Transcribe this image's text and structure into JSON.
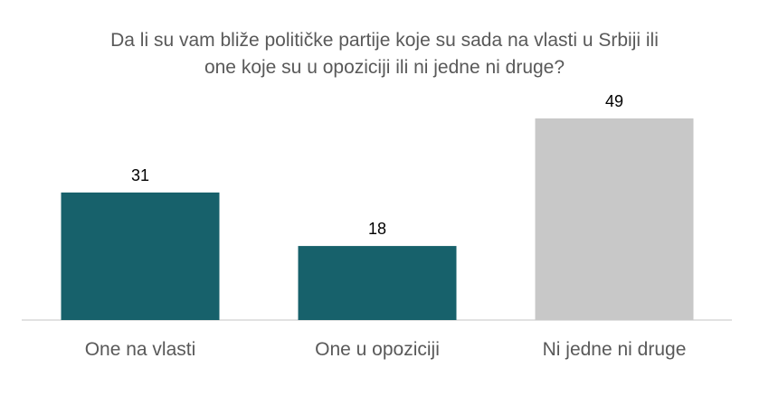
{
  "chart_data": {
    "type": "bar",
    "title_lines": [
      "Da li su vam bliže političke partije koje su sada na vlasti u Srbiji ili",
      "one koje su u opoziciji ili ni jedne ni druge?"
    ],
    "categories": [
      "One na vlasti",
      "One u opoziciji",
      "Ni jedne ni druge"
    ],
    "values": [
      31,
      18,
      49
    ],
    "data_labels": [
      "31",
      "18",
      "49"
    ],
    "colors": [
      "#17616B",
      "#17616B",
      "#C8C8C8"
    ],
    "xlabel": "",
    "ylabel": "",
    "ylim": [
      0,
      49
    ],
    "grid": false,
    "legend": "none"
  },
  "style": {
    "axis_color": "#D9D9D9",
    "title_color": "#595959",
    "category_label_color": "#595959",
    "data_label_color": "#000000"
  }
}
